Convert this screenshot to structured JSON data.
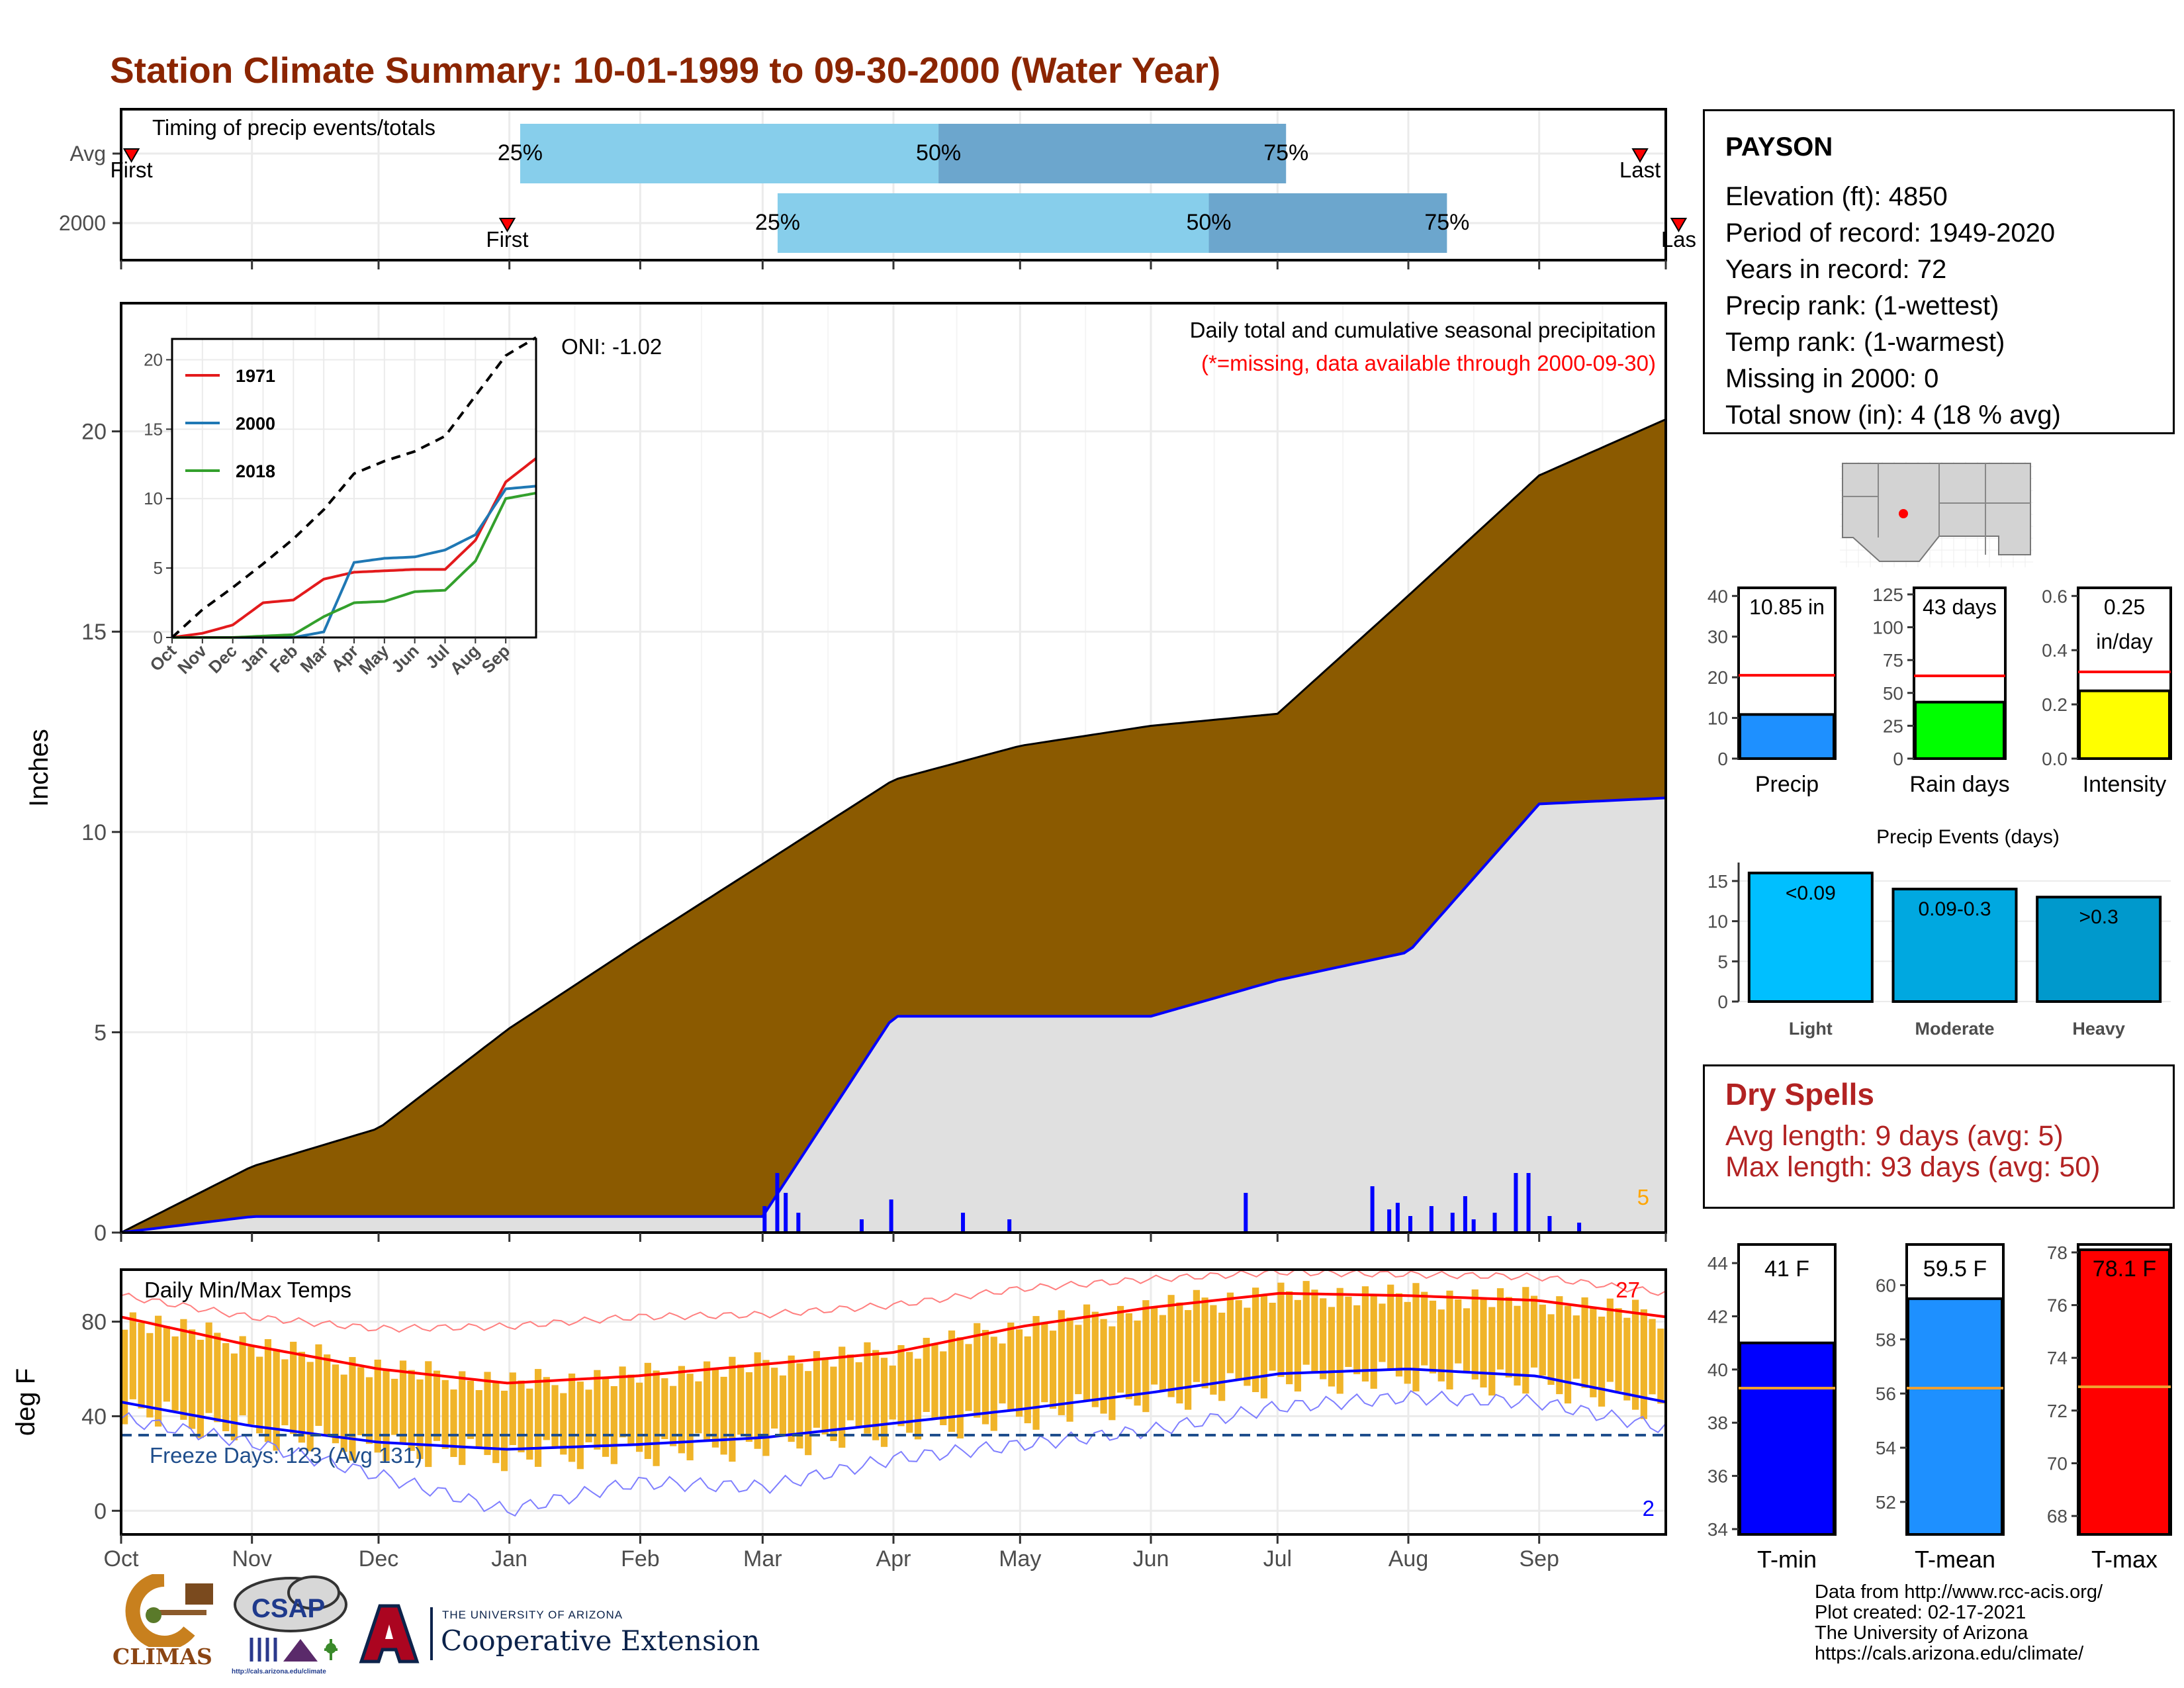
{
  "title": "Station Climate Summary: 10-01-1999 to 09-30-2000 (Water Year)",
  "colors": {
    "title": "#8b2500",
    "precip_fill": "#8b5a00",
    "avg_fill": "#e0e0e0",
    "avg_line": "#0000ff",
    "timing_light": "#87ceeb",
    "timing_dark": "#6ca6cd",
    "temp_bar": "#f0b429",
    "tmax_line": "#ff0000",
    "tmin_line": "#0000ff",
    "freeze_line": "#1f4e8c",
    "dry_spells": "#b22222",
    "missing_note": "#ff0000"
  },
  "timing": {
    "title": "Timing of precip events/totals",
    "rows": [
      {
        "label": "Avg",
        "first_pos": 0.08,
        "last_pos": 11.8,
        "q25": 3.1,
        "q50": 6.35,
        "q75": 9.05,
        "first_label": "First",
        "last_label": "Last",
        "p25_label": "25%",
        "p50_label": "50%",
        "p75_label": "75%"
      },
      {
        "label": "2000",
        "first_pos": 3.0,
        "last_pos": 12.1,
        "q25": 5.1,
        "q50": 8.45,
        "q75": 10.3,
        "first_label": "First",
        "last_label": "Las",
        "p25_label": "25%",
        "p50_label": "50%",
        "p75_label": "75%"
      }
    ]
  },
  "precip_panel": {
    "ylabel": "Inches",
    "y_ticks": [
      "0",
      "5",
      "10",
      "15",
      "20"
    ],
    "oni_label": "ONI: -1.02",
    "subtitle": "Daily total and cumulative seasonal precipitation",
    "missing_note": "(*=missing, data available through 2000-09-30)",
    "corner_count": "5"
  },
  "inset": {
    "legend": [
      "1971",
      "2000",
      "2018"
    ],
    "y_ticks": [
      "0",
      "5",
      "10",
      "15",
      "20"
    ],
    "x_ticks": [
      "Oct",
      "Nov",
      "Dec",
      "Jan",
      "Feb",
      "Mar",
      "Apr",
      "May",
      "Jun",
      "Jul",
      "Aug",
      "Sep"
    ]
  },
  "temp_panel": {
    "ylabel": "deg F",
    "title": "Daily Min/Max Temps",
    "freeze_label": "Freeze Days: 123 (Avg 131)",
    "y_ticks": [
      "0",
      "40",
      "80"
    ],
    "max_count": "27",
    "min_count": "2"
  },
  "x_months": [
    "Oct",
    "Nov",
    "Dec",
    "Jan",
    "Feb",
    "Mar",
    "Apr",
    "May",
    "Jun",
    "Jul",
    "Aug",
    "Sep"
  ],
  "station": {
    "name": "PAYSON",
    "elevation": "Elevation (ft): 4850",
    "period": "Period of record: 1949-2020",
    "years": "Years in record: 72",
    "precip_rank": "Precip rank:  (1-wettest)",
    "temp_rank": "Temp rank:  (1-warmest)",
    "missing": "Missing in 2000: 0",
    "snow": "Total snow (in): 4 (18 % avg)"
  },
  "mini_bars": [
    {
      "label": "Precip",
      "value_label": "10.85 in",
      "ticks": [
        "0",
        "10",
        "20",
        "30",
        "40"
      ],
      "fill": "#1e90ff"
    },
    {
      "label": "Rain days",
      "value_label": "43 days",
      "ticks": [
        "0",
        "25",
        "50",
        "75",
        "100",
        "125"
      ],
      "fill": "#00ff00"
    },
    {
      "label": "Intensity",
      "value_label": "0.25",
      "value_label2": "in/day",
      "ticks": [
        "0.0",
        "0.2",
        "0.4",
        "0.6"
      ],
      "fill": "#ffff00"
    }
  ],
  "precip_events": {
    "title": "Precip Events (days)",
    "ticks": [
      "0",
      "5",
      "10",
      "15"
    ],
    "bars": [
      {
        "category": "Light",
        "label": "<0.09",
        "fill": "#00bfff"
      },
      {
        "category": "Moderate",
        "label": "0.09-0.3",
        "fill": "#00a8e0"
      },
      {
        "category": "Heavy",
        "label": ">0.3",
        "fill": "#0099cc"
      }
    ]
  },
  "dry_spells": {
    "title": "Dry Spells",
    "avg": "Avg length: 9 days (avg: 5)",
    "max": "Max length: 93 days (avg: 50)"
  },
  "temp_bars": [
    {
      "label": "T-min",
      "value_label": "41 F",
      "ticks": [
        "34",
        "36",
        "38",
        "40",
        "42",
        "44"
      ],
      "fill": "#0000ff"
    },
    {
      "label": "T-mean",
      "value_label": "59.5 F",
      "ticks": [
        "52",
        "54",
        "56",
        "58",
        "60"
      ],
      "fill": "#1e90ff"
    },
    {
      "label": "T-max",
      "value_label": "78.1 F",
      "ticks": [
        "68",
        "70",
        "72",
        "74",
        "76",
        "78"
      ],
      "fill": "#ff0000"
    }
  ],
  "footer": {
    "l1": "Data from http://www.rcc-acis.org/",
    "l2": "Plot created: 02-17-2021",
    "l3": "The University of Arizona",
    "l4": "https://cals.arizona.edu/climate/"
  },
  "logos": {
    "climas": "CLIMAS",
    "csap": "CSAP",
    "csap_url": "http://cals.arizona.edu/climate",
    "ua_small": "THE UNIVERSITY OF ARIZONA",
    "ua_big": "Cooperative Extension"
  },
  "chart_data": [
    {
      "type": "area",
      "title": "Daily total and cumulative seasonal precipitation",
      "ylabel": "Inches",
      "ylim": [
        0,
        23.2
      ],
      "x": [
        "Oct",
        "Nov",
        "Dec",
        "Jan",
        "Feb",
        "Mar",
        "Apr",
        "May",
        "Jun",
        "Jul",
        "Aug",
        "Sep",
        "Sep-end"
      ],
      "series": [
        {
          "values": [
            0,
            1.65,
            2.6,
            5.1,
            7.25,
            9.2,
            11.3,
            12.15,
            12.65,
            12.95,
            15.9,
            18.9,
            20.3
          ]
        },
        {
          "values": [
            0,
            0.4,
            0.4,
            0.4,
            0.4,
            0.4,
            5.4,
            5.4,
            5.4,
            6.3,
            7.0,
            10.7,
            10.85
          ]
        }
      ]
    },
    {
      "type": "line",
      "title": "",
      "x": [
        "Oct",
        "Nov",
        "Dec",
        "Jan",
        "Feb",
        "Mar",
        "Apr",
        "May",
        "Jun",
        "Jul",
        "Aug",
        "Sep",
        "Sep-end"
      ],
      "ylim": [
        0,
        21.5
      ],
      "series": [
        {
          "name": "1971",
          "values": [
            0,
            0.3,
            0.9,
            2.5,
            2.7,
            4.2,
            4.7,
            4.8,
            4.9,
            4.9,
            7.0,
            11.2,
            12.9
          ]
        },
        {
          "name": "2000",
          "values": [
            0,
            0.0,
            0.0,
            0.0,
            0.0,
            0.4,
            5.4,
            5.7,
            5.8,
            6.3,
            7.4,
            10.7,
            10.9
          ]
        },
        {
          "name": "2018",
          "values": [
            0,
            0.0,
            0.0,
            0.1,
            0.2,
            1.5,
            2.5,
            2.6,
            3.3,
            3.4,
            5.5,
            10.0,
            10.4
          ]
        },
        {
          "values": [
            0,
            2.0,
            3.6,
            5.3,
            7.1,
            9.2,
            11.8,
            12.7,
            13.4,
            14.5,
            17.4,
            20.3,
            21.6
          ]
        }
      ]
    },
    {
      "type": "line",
      "title": "Daily Min/Max Temps",
      "ylabel": "deg F",
      "ylim": [
        -10,
        102
      ],
      "x": [
        "Oct",
        "Nov",
        "Dec",
        "Jan",
        "Feb",
        "Mar",
        "Apr",
        "May",
        "Jun",
        "Jul",
        "Aug",
        "Sep",
        "Sep-end"
      ],
      "series": [
        {
          "values": [
            82,
            70,
            60,
            54,
            57,
            62,
            67,
            78,
            86,
            92,
            91,
            89,
            82
          ]
        },
        {
          "values": [
            46,
            36,
            29,
            26,
            28,
            31,
            37,
            43,
            50,
            58,
            60,
            57,
            46
          ]
        },
        {
          "values": [
            91,
            82,
            77,
            78,
            82,
            83,
            87,
            94,
            98,
            101,
            100,
            99,
            92
          ]
        },
        {
          "values": [
            39,
            29,
            15,
            0,
            12,
            10,
            22,
            28,
            34,
            44,
            48,
            46,
            35
          ]
        },
        {
          "values": [
            32,
            32,
            32,
            32,
            32,
            32,
            32,
            32,
            32,
            32,
            32,
            32,
            32
          ]
        }
      ]
    },
    {
      "type": "bar",
      "title": "",
      "categories": [
        "Precip",
        "Rain days",
        "Intensity"
      ],
      "series": [
        {
          "name": "value",
          "values": [
            10.85,
            43,
            0.25
          ]
        },
        {
          "name": "avg",
          "values": [
            20.5,
            63,
            0.32
          ]
        }
      ],
      "ylims": [
        [
          0,
          42
        ],
        [
          0,
          130
        ],
        [
          0,
          0.63
        ]
      ]
    },
    {
      "type": "bar",
      "title": "Precip Events (days)",
      "categories": [
        "Light",
        "Moderate",
        "Heavy"
      ],
      "values": [
        16,
        14,
        13
      ],
      "ylim": [
        0,
        17.3
      ]
    },
    {
      "type": "bar",
      "title": "",
      "categories": [
        "T-min",
        "T-mean",
        "T-max"
      ],
      "series": [
        {
          "name": "value",
          "values": [
            41,
            59.5,
            78.1
          ]
        },
        {
          "name": "avg",
          "values": [
            39.3,
            56.2,
            72.9
          ]
        }
      ],
      "ylims": [
        [
          33.8,
          44.7
        ],
        [
          50.8,
          61.5
        ],
        [
          67.3,
          78.3
        ]
      ]
    }
  ]
}
